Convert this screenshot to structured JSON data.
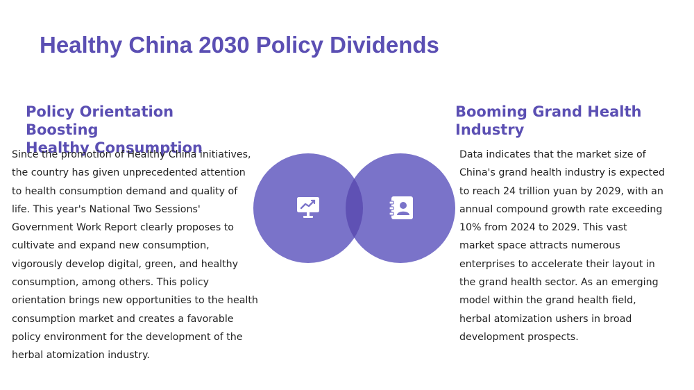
{
  "title": "Healthy China 2030 Policy Dividends",
  "left_section": {
    "heading_line1": "Policy Orientation Boosting",
    "heading_line2": "Healthy Consumption",
    "body": "Since the promotion of Healthy China initiatives, the country has given unprecedented attention to health consumption demand and quality of life. This year's National Two Sessions' Government Work Report clearly proposes to cultivate and expand new consumption, vigorously develop digital, green, and healthy consumption, among others. This policy orientation brings new opportunities to the health consumption market and creates a favorable policy environment for the development of the herbal atomization industry."
  },
  "right_section": {
    "heading_line1": "Booming Grand Health",
    "heading_line2": "Industry",
    "body": "Data indicates that the market size of China's grand health industry is expected to reach 24 trillion yuan by 2029, with an annual compound growth rate exceeding 10% from 2024 to 2029. This vast market space attracts numerous enterprises to accelerate their layout in the grand health sector. As an emerging model within the grand health field, herbal atomization ushers in broad development prospects."
  },
  "venn": {
    "left_icon": "monitor-chart-icon",
    "right_icon": "contact-book-icon",
    "circle_color": "#7a73c9",
    "overlap_color": "#5f51b4"
  }
}
